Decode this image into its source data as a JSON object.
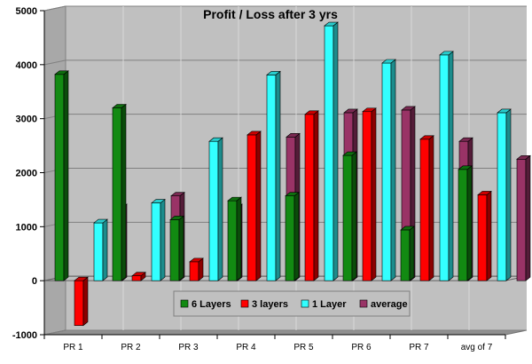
{
  "chart_data": {
    "type": "bar",
    "title": "Profit / Loss after 3 yrs",
    "xlabel": "",
    "ylabel": "",
    "categories": [
      "PR 1",
      "PR 2",
      "PR 3",
      "PR 4",
      "PR 5",
      "PR 6",
      "PR 7",
      "avg of 7"
    ],
    "ylim": [
      -1000,
      5000
    ],
    "yticks": [
      -1000,
      0,
      1000,
      2000,
      3000,
      4000,
      5000
    ],
    "grid": true,
    "legend_position": "bottom-center",
    "series": [
      {
        "name": "6 Layers",
        "color": "#128a12",
        "values": [
          3820,
          3200,
          1130,
          1480,
          1570,
          2320,
          940,
          2060
        ]
      },
      {
        "name": "3 layers",
        "color": "#ff0000",
        "values": [
          -830,
          90,
          350,
          2700,
          3080,
          3130,
          2620,
          1590
        ]
      },
      {
        "name": "1 Layer",
        "color": "#33ffff",
        "values": [
          1070,
          1440,
          2580,
          3810,
          4720,
          4030,
          4180,
          3110
        ]
      },
      {
        "name": "average",
        "color": "#993366",
        "values": [
          1350,
          1570,
          1350,
          2660,
          3110,
          3160,
          2580,
          2250
        ]
      }
    ]
  }
}
